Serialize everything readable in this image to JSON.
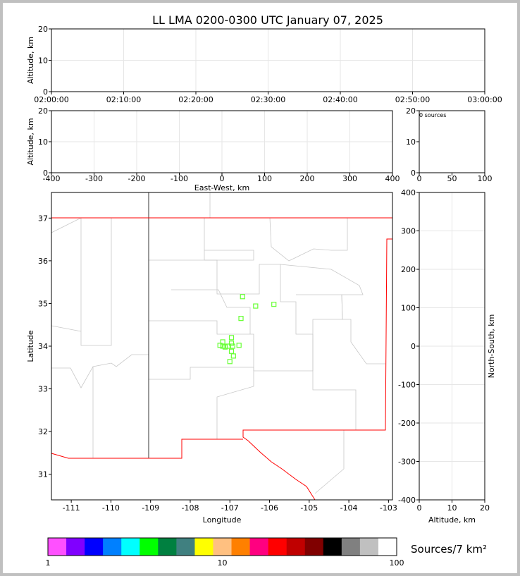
{
  "chart_data": [
    {
      "type": "scatter",
      "title": "LL LMA 0200-0300 UTC January 07, 2025",
      "ylabel": "Altitude, km",
      "ylim": [
        0,
        20
      ],
      "yticks": [
        0,
        10,
        20
      ],
      "xticks": [
        "02:00:00",
        "02:10:00",
        "02:20:00",
        "02:30:00",
        "02:40:00",
        "02:50:00",
        "03:00:00"
      ],
      "grid": true,
      "points": []
    },
    {
      "type": "scatter",
      "xlabel": "East-West, km",
      "ylabel": "Altitude, km",
      "xlim": [
        -400,
        400
      ],
      "ylim": [
        0,
        20
      ],
      "xticks": [
        -400,
        -300,
        -200,
        -100,
        0,
        100,
        200,
        300,
        400
      ],
      "yticks": [
        0,
        10,
        20
      ],
      "grid": true,
      "points": []
    },
    {
      "type": "bar",
      "annotation": "0 sources",
      "xlim": [
        0,
        100
      ],
      "ylim": [
        0,
        20
      ],
      "xticks": [
        0,
        50,
        100
      ],
      "yticks": [
        0,
        10,
        20
      ],
      "values": []
    },
    {
      "type": "scatter",
      "xlabel": "Longitude",
      "ylabel": "Latitude",
      "xlim": [
        -111.5,
        -102.9
      ],
      "ylim": [
        30.4,
        37.6
      ],
      "xticks": [
        -111,
        -110,
        -109,
        -108,
        -107,
        -106,
        -105,
        -104,
        -103
      ],
      "yticks": [
        31,
        32,
        33,
        34,
        35,
        36,
        37
      ],
      "marker_color": "#66ff33",
      "grid": false,
      "points": [
        [
          -106.68,
          35.16
        ],
        [
          -106.35,
          34.94
        ],
        [
          -105.89,
          34.98
        ],
        [
          -106.72,
          34.65
        ],
        [
          -107.18,
          34.1
        ],
        [
          -106.96,
          34.2
        ],
        [
          -106.96,
          34.07
        ],
        [
          -107.25,
          34.02
        ],
        [
          -107.18,
          34.0
        ],
        [
          -107.12,
          33.98
        ],
        [
          -107.05,
          34.0
        ],
        [
          -106.93,
          34.0
        ],
        [
          -106.77,
          34.02
        ],
        [
          -106.96,
          33.88
        ],
        [
          -106.91,
          33.77
        ],
        [
          -107.0,
          33.64
        ]
      ]
    },
    {
      "type": "scatter",
      "xlabel": "Altitude, km",
      "ylabel": "North-South, km",
      "xlim": [
        0,
        20
      ],
      "ylim": [
        -400,
        400
      ],
      "xticks": [
        0,
        10,
        20
      ],
      "yticks": [
        -400,
        -300,
        -200,
        -100,
        0,
        100,
        200,
        300,
        400
      ],
      "grid": true,
      "points": []
    }
  ],
  "colorbar": {
    "label": "Sources/7 km²",
    "ticks": [
      "1",
      "10",
      "100"
    ],
    "colors": [
      "#ff50ff",
      "#8000ff",
      "#0000ff",
      "#0080ff",
      "#00ffff",
      "#00ff00",
      "#008040",
      "#408080",
      "#ffff00",
      "#ffc080",
      "#ff8000",
      "#ff0080",
      "#ff0000",
      "#c00000",
      "#800000",
      "#000000",
      "#808080",
      "#c0c0c0",
      "#ffffff"
    ]
  }
}
